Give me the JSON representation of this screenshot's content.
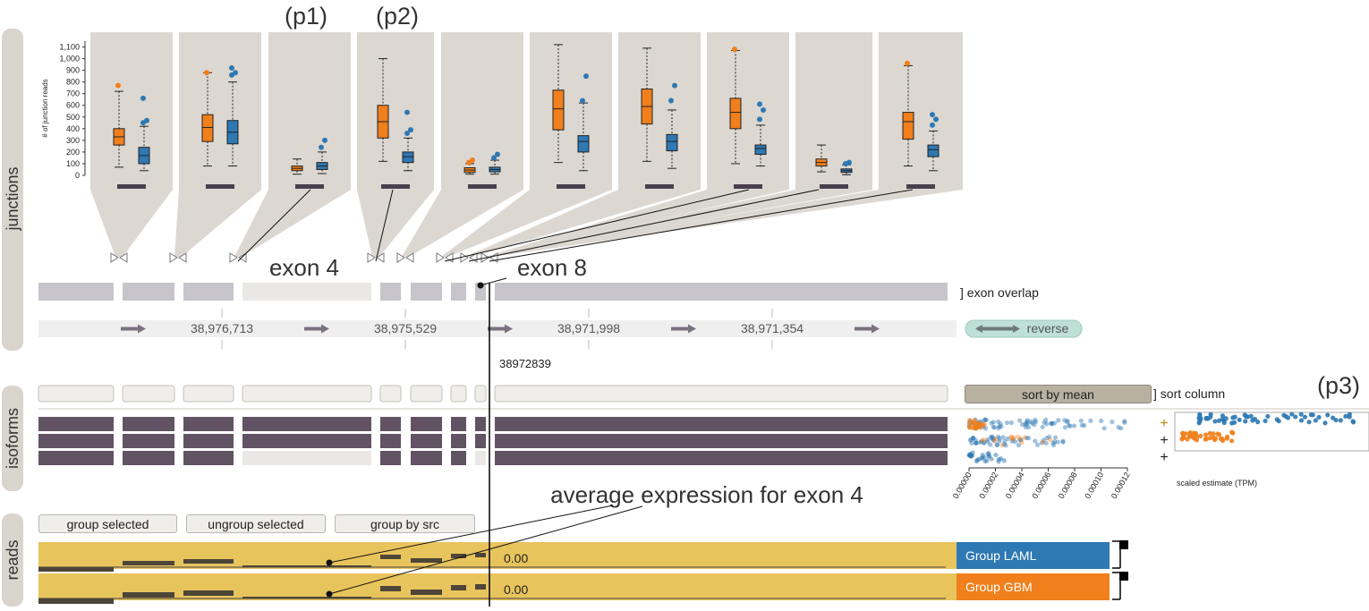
{
  "panels": {
    "junctions": "junctions",
    "isoforms": "isoforms",
    "reads": "reads"
  },
  "callouts": {
    "p1": "(p1)",
    "p2": "(p2)",
    "p3": "(p3)",
    "exon4": "exon 4",
    "exon8": "exon 8",
    "avg_expression": "average expression for exon 4"
  },
  "junction_chart": {
    "ylabel": "# of junction reads",
    "yticks": [
      "0",
      "100",
      "200",
      "300",
      "400",
      "500",
      "600",
      "700",
      "800",
      "900",
      "1,000",
      "1,100"
    ],
    "ylim": [
      0,
      1150
    ]
  },
  "chart_data": {
    "type": "boxplot",
    "ylabel": "# of junction reads",
    "ylim": [
      0,
      1150
    ],
    "series": [
      {
        "color": "#f07f1c",
        "boxes": [
          {
            "q1": 260,
            "median": 330,
            "q3": 400,
            "min": 70,
            "max": 720,
            "outliers": [
              770
            ]
          },
          {
            "q1": 290,
            "median": 410,
            "q3": 520,
            "min": 80,
            "max": 880,
            "outliers": [
              880
            ]
          },
          {
            "q1": 40,
            "median": 60,
            "q3": 80,
            "min": 10,
            "max": 140,
            "outliers": []
          },
          {
            "q1": 320,
            "median": 460,
            "q3": 600,
            "min": 120,
            "max": 1000,
            "outliers": []
          },
          {
            "q1": 25,
            "median": 45,
            "q3": 65,
            "min": 10,
            "max": 100,
            "outliers": [
              110,
              130
            ]
          },
          {
            "q1": 390,
            "median": 570,
            "q3": 730,
            "min": 110,
            "max": 1120,
            "outliers": []
          },
          {
            "q1": 440,
            "median": 590,
            "q3": 740,
            "min": 120,
            "max": 1090,
            "outliers": []
          },
          {
            "q1": 400,
            "median": 540,
            "q3": 660,
            "min": 100,
            "max": 1070,
            "outliers": [
              1080
            ]
          },
          {
            "q1": 80,
            "median": 110,
            "q3": 140,
            "min": 30,
            "max": 260,
            "outliers": []
          },
          {
            "q1": 310,
            "median": 460,
            "q3": 540,
            "min": 80,
            "max": 940,
            "outliers": [
              960
            ]
          }
        ]
      },
      {
        "color": "#2e78b3",
        "boxes": [
          {
            "q1": 100,
            "median": 170,
            "q3": 240,
            "min": 40,
            "max": 420,
            "outliers": [
              450,
              470,
              660
            ]
          },
          {
            "q1": 270,
            "median": 370,
            "q3": 470,
            "min": 80,
            "max": 800,
            "outliers": [
              860,
              880,
              920
            ]
          },
          {
            "q1": 50,
            "median": 80,
            "q3": 110,
            "min": 15,
            "max": 200,
            "outliers": [
              240,
              300
            ]
          },
          {
            "q1": 110,
            "median": 160,
            "q3": 200,
            "min": 40,
            "max": 320,
            "outliers": [
              360,
              390,
              540
            ]
          },
          {
            "q1": 30,
            "median": 50,
            "q3": 70,
            "min": 10,
            "max": 130,
            "outliers": [
              150,
              180
            ]
          },
          {
            "q1": 200,
            "median": 290,
            "q3": 340,
            "min": 40,
            "max": 620,
            "outliers": [
              640,
              850
            ]
          },
          {
            "q1": 210,
            "median": 290,
            "q3": 350,
            "min": 60,
            "max": 560,
            "outliers": [
              640,
              770
            ]
          },
          {
            "q1": 180,
            "median": 230,
            "q3": 260,
            "min": 80,
            "max": 430,
            "outliers": [
              480,
              560,
              610
            ]
          },
          {
            "q1": 25,
            "median": 40,
            "q3": 55,
            "min": 5,
            "max": 90,
            "outliers": [
              100,
              110
            ]
          },
          {
            "q1": 160,
            "median": 220,
            "q3": 260,
            "min": 40,
            "max": 380,
            "outliers": [
              430,
              480,
              520
            ]
          }
        ]
      }
    ]
  },
  "genome": {
    "overlap_label": "] exon overlap",
    "coords": [
      "38,976,713",
      "38,975,529",
      "38,971,998",
      "38,971,354"
    ],
    "reverse_label": "reverse",
    "cursor_label": "38972839"
  },
  "isoforms": {
    "sort_button": "sort by mean",
    "sort_label": "] sort column",
    "xaxis_label": "scaled estimate (TPM)",
    "xticks": [
      "0.00000",
      "0.00002",
      "0.00004",
      "0.00006",
      "0.00008",
      "0.00010",
      "0.00012"
    ],
    "expand_signs": [
      "+",
      "+",
      "+"
    ]
  },
  "reads": {
    "buttons": {
      "group_selected": "group selected",
      "ungroup_selected": "ungroup selected",
      "group_by_src": "group by src"
    },
    "value_laml": "0.00",
    "value_gbm": "0.00",
    "group_laml": "Group LAML",
    "group_gbm": "Group GBM"
  },
  "colors": {
    "orange": "#f07f1c",
    "blue": "#2e78b3",
    "panel_gray": "#dcd8d1",
    "isoform_dark": "#625364",
    "read_yellow": "#e8c45c",
    "reverse_green": "#bfe0d7"
  }
}
